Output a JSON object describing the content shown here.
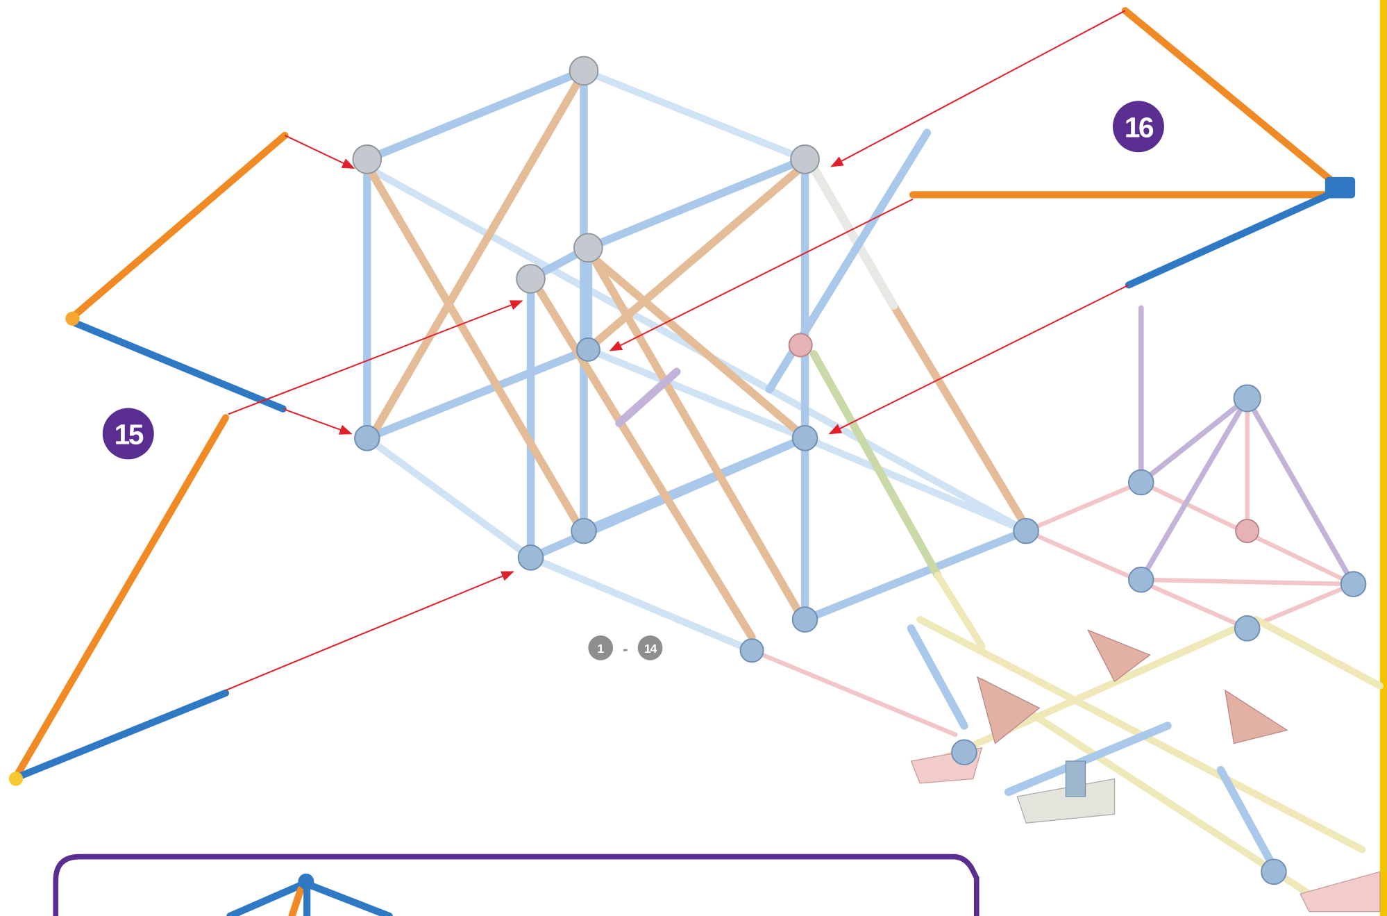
{
  "steps": [
    {
      "label": "15"
    },
    {
      "label": "16"
    }
  ],
  "range": {
    "from": "1",
    "separator": "-",
    "to": "14"
  }
}
